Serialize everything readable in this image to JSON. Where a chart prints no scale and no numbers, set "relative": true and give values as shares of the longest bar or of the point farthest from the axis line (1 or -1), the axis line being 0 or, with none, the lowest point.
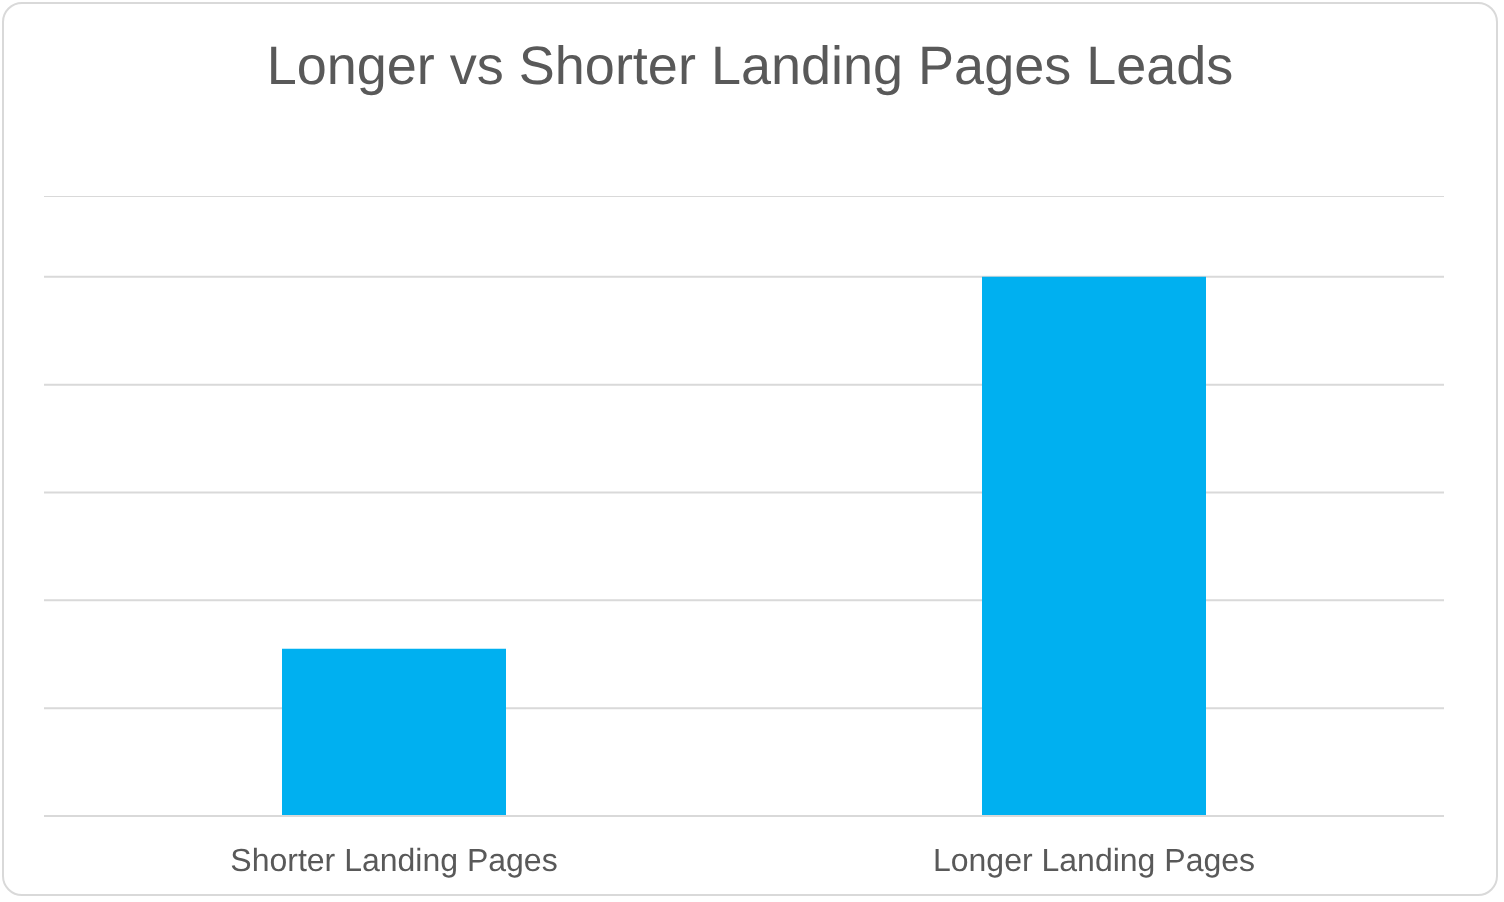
{
  "chart_data": {
    "type": "bar",
    "title": "Longer vs Shorter Landing Pages Leads",
    "categories": [
      "Shorter Landing Pages",
      "Longer Landing Pages"
    ],
    "values": [
      0.31,
      1
    ],
    "color": "#00b0f0",
    "relative": true,
    "grid": "y"
  }
}
